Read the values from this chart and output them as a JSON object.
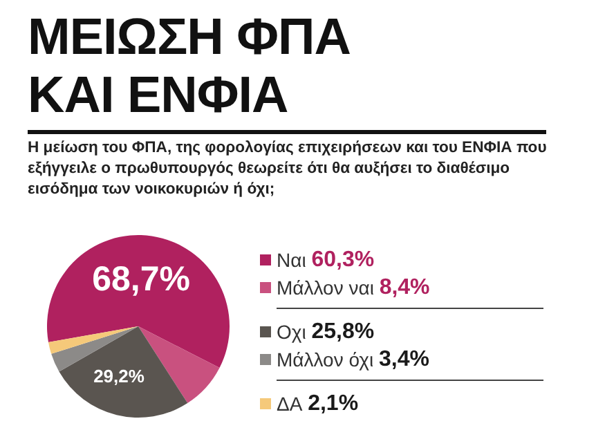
{
  "chart_data": {
    "type": "pie",
    "title": "ΜΕΙΩΣΗ ΦΠΑ ΚΑΙ ΕΝΦΙΑ",
    "subtitle": "Η μείωση του ΦΠΑ, της φορολογίας επιχειρήσεων και του ΕΝΦΙΑ που εξήγγειλε ο πρωθυπουργός θεωρείτε ότι θα αυξήσει το διαθέσιμο εισόδημα των νοικοκυριών ή όχι;",
    "categories": [
      "Ναι",
      "Μάλλον ναι",
      "Οχι",
      "Μάλλον όχι",
      "ΔΑ"
    ],
    "values": [
      60.3,
      8.4,
      25.8,
      3.4,
      2.1
    ],
    "value_labels": [
      "60,3%",
      "8,4%",
      "25,8%",
      "3,4%",
      "2,1%"
    ],
    "colors": [
      "#b0215f",
      "#c9517f",
      "#5a5550",
      "#8c8a88",
      "#f5c97a"
    ],
    "annotations": [
      "68,7%",
      "29,2%"
    ],
    "legend": "right"
  }
}
